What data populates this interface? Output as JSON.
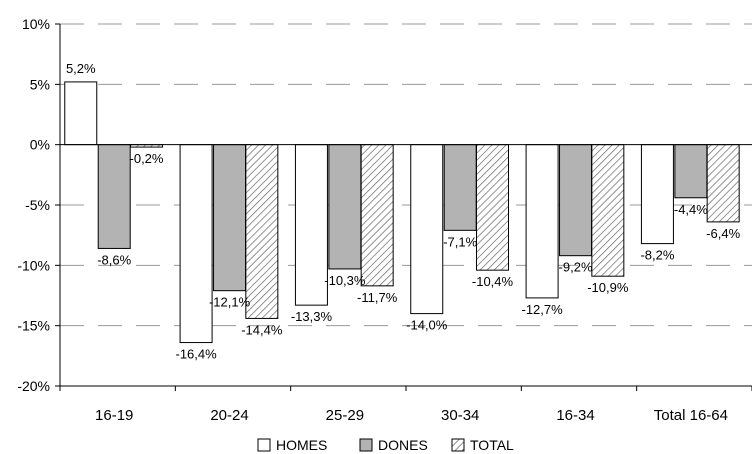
{
  "chart_data": {
    "type": "bar",
    "title": "",
    "xlabel": "",
    "ylabel": "",
    "categories": [
      "16-19",
      "20-24",
      "25-29",
      "30-34",
      "16-34",
      "Total 16-64"
    ],
    "series": [
      {
        "name": "HOMES",
        "values": [
          5.2,
          -16.4,
          -13.3,
          -14.0,
          -12.7,
          -8.2
        ],
        "labels": [
          "5,2%",
          "-16,4%",
          "-13,3%",
          "-14,0%",
          "-12,7%",
          "-8,2%"
        ],
        "fill": "#ffffff",
        "pattern": "none"
      },
      {
        "name": "DONES",
        "values": [
          -8.6,
          -12.1,
          -10.3,
          -7.1,
          -9.2,
          -4.4
        ],
        "labels": [
          "-8,6%",
          "-12,1%",
          "-10,3%",
          "-7,1%",
          "-9,2%",
          "-4,4%"
        ],
        "fill": "#b3b3b3",
        "pattern": "none"
      },
      {
        "name": "TOTAL",
        "values": [
          -0.2,
          -14.4,
          -11.7,
          -10.4,
          -10.9,
          -6.4
        ],
        "labels": [
          "-0,2%",
          "-14,4%",
          "-11,7%",
          "-10,4%",
          "-10,9%",
          "-6,4%"
        ],
        "fill": "#ffffff",
        "pattern": "diagonal-hatch"
      }
    ],
    "yticks": [
      10,
      5,
      0,
      -5,
      -10,
      -15,
      -20
    ],
    "ytick_labels": [
      "10%",
      "5%",
      "0%",
      "-5%",
      "-10%",
      "-15%",
      "-20%"
    ],
    "ylim": [
      -20,
      10
    ],
    "grid": "dashed-horizontal",
    "legend": "bottom-center",
    "colors": {
      "stroke": "#000000",
      "grid": "#999999"
    }
  }
}
